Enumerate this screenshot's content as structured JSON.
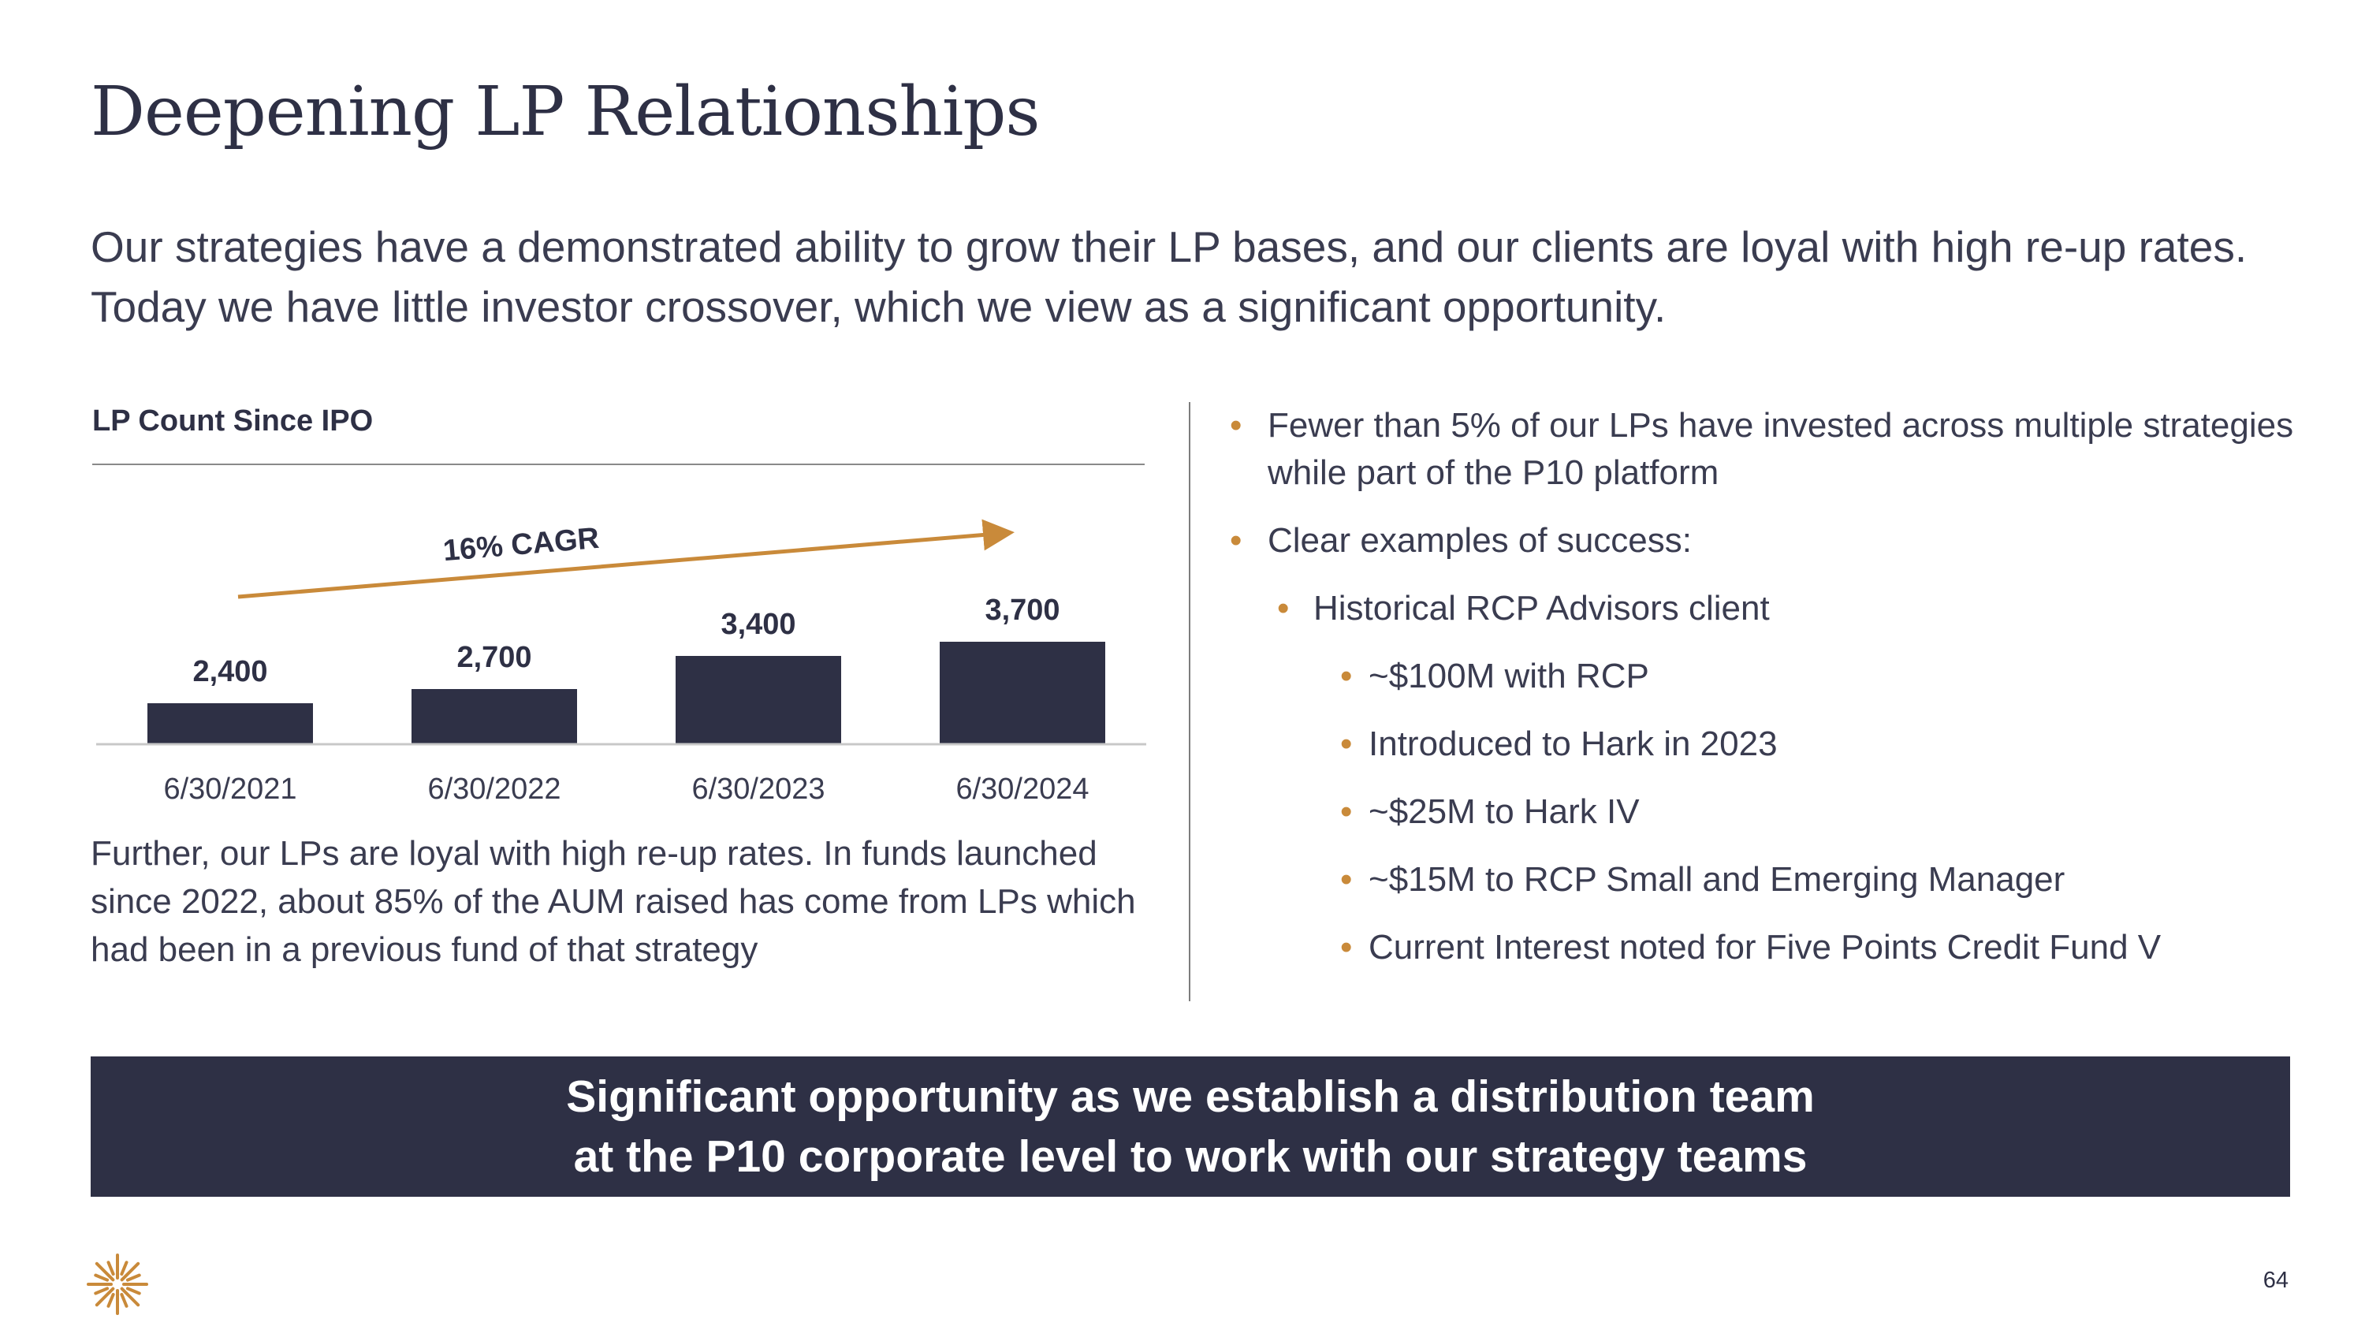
{
  "slide": {
    "title": "Deepening LP Relationships",
    "subtitle": "Our strategies have a demonstrated ability to grow their LP bases, and our clients are loyal with high re-up rates. Today we have little investor crossover, which we view as a significant opportunity.",
    "page_number": "64"
  },
  "chart_data": {
    "type": "bar",
    "title": "LP Count Since IPO",
    "categories": [
      "6/30/2021",
      "6/30/2022",
      "6/30/2023",
      "6/30/2024"
    ],
    "values": [
      2400,
      2700,
      3400,
      3700
    ],
    "value_labels": [
      "2,400",
      "2,700",
      "3,400",
      "3,700"
    ],
    "annotation": "16% CAGR",
    "bar_color": "#2e3045",
    "arrow_color": "#c98a3a",
    "grid": false
  },
  "chart_note": "Further, our LPs are loyal with high re-up rates. In funds launched since 2022, about 85% of the AUM raised has come from LPs which had been in a previous fund of that strategy",
  "bullets": [
    {
      "level": 1,
      "text": "Fewer than 5% of our LPs have invested across multiple strategies while part of the P10 platform"
    },
    {
      "level": 1,
      "text": "Clear examples of success:"
    },
    {
      "level": 2,
      "text": "Historical RCP Advisors client"
    },
    {
      "level": 3,
      "text": "~$100M with RCP"
    },
    {
      "level": 3,
      "text": "Introduced to Hark in 2023"
    },
    {
      "level": 3,
      "text": "~$25M to Hark IV"
    },
    {
      "level": 3,
      "text": "~$15M to RCP Small and Emerging Manager"
    },
    {
      "level": 3,
      "text": "Current Interest noted for Five Points Credit Fund V"
    }
  ],
  "banner": {
    "line1": "Significant opportunity as we establish a distribution team",
    "line2": "at the P10 corporate level to work with our strategy teams"
  },
  "colors": {
    "navy": "#2e3045",
    "accent": "#c98a3a"
  },
  "icons": {
    "logo": "starburst-logo-icon",
    "bullet": "bullet-dot-icon"
  }
}
